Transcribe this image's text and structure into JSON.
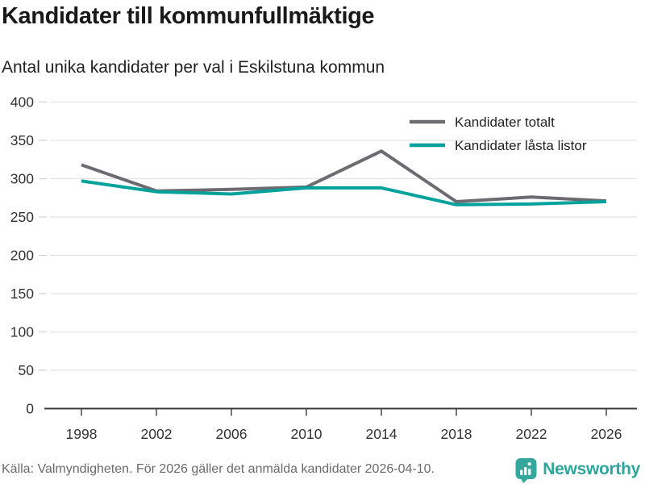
{
  "header": {
    "title": "Kandidater till kommunfullmäktige",
    "subtitle": "Antal unika kandidater per val i Eskilstuna kommun"
  },
  "chart_data": {
    "type": "line",
    "title": "Kandidater till kommunfullmäktige",
    "subtitle": "Antal unika kandidater per val i Eskilstuna kommun",
    "x": [
      1998,
      2002,
      2006,
      2010,
      2014,
      2018,
      2022,
      2026
    ],
    "series": [
      {
        "name": "Kandidater totalt",
        "color": "#6d6a71",
        "values": [
          318,
          284,
          286,
          289,
          336,
          270,
          276,
          271
        ]
      },
      {
        "name": "Kandidater låsta listor",
        "color": "#00a29b",
        "values": [
          297,
          283,
          280,
          288,
          288,
          266,
          267,
          270
        ]
      }
    ],
    "ylim": [
      0,
      400
    ],
    "yticks": [
      0,
      50,
      100,
      150,
      200,
      250,
      300,
      350,
      400
    ],
    "grid": "horizontal",
    "legend_position": "top-right"
  },
  "footer": {
    "source": "Källa: Valmyndigheten. För 2026 gäller det anmälda kandidater 2026-04-10.",
    "brand": "Newsworthy"
  },
  "colors": {
    "series_gray": "#6d6a71",
    "accent_teal": "#00a29b",
    "grid": "#e4e4e4",
    "tick_dash": "#d2d2d2",
    "axis": "#3c3c3c",
    "axis_text": "#333333",
    "muted_text": "#6b6b6b",
    "logo_teal": "#35a79c"
  }
}
